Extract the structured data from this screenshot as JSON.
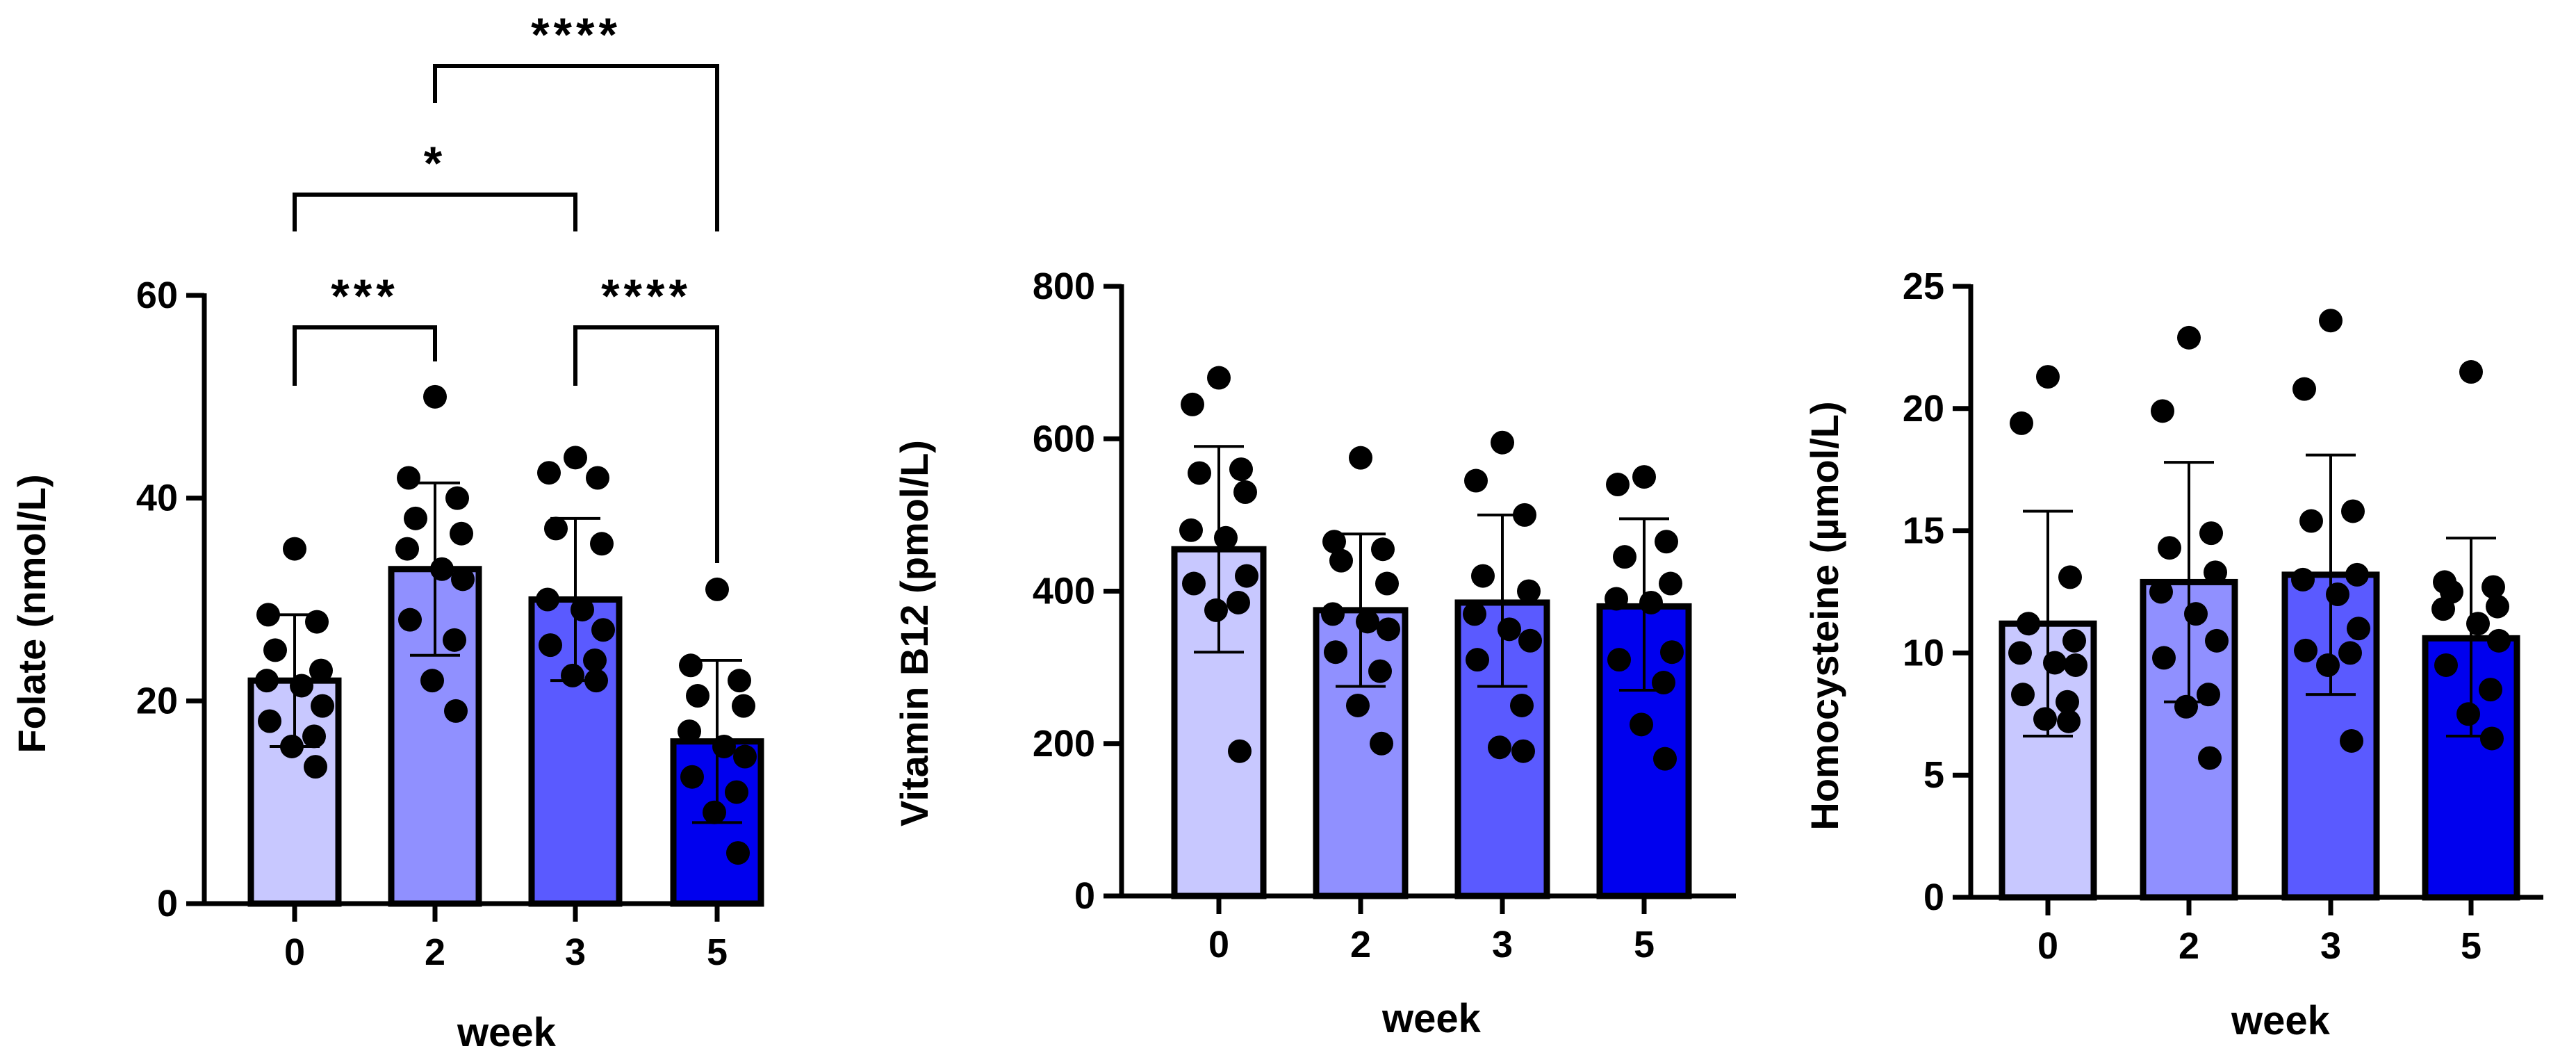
{
  "figure": {
    "background": "#ffffff",
    "bar_colors": [
      "#c8c8ff",
      "#9090ff",
      "#5a5aff",
      "#0000ee"
    ],
    "dot_color": "#000000",
    "panels": [
      "folate",
      "vitamin_b12",
      "homocysteine"
    ]
  },
  "chart_data": [
    {
      "id": "folate",
      "type": "bar",
      "title": "",
      "xlabel": "week",
      "ylabel": "Folate (nmol/L)",
      "categories": [
        "0",
        "2",
        "3",
        "5"
      ],
      "means": [
        22,
        33,
        30,
        16
      ],
      "sd_upper": [
        28.5,
        41.5,
        38,
        24
      ],
      "sd_lower": [
        15.5,
        24.5,
        22,
        8
      ],
      "points": [
        [
          35,
          28.5,
          27.8,
          25,
          23,
          22,
          21.5,
          19.5,
          18,
          16.5,
          15.5,
          13.5
        ],
        [
          50,
          42,
          40,
          38,
          36.5,
          35,
          33,
          32,
          28,
          26,
          22,
          19
        ],
        [
          44,
          42.5,
          42,
          37,
          35.5,
          30,
          29,
          27,
          25.5,
          24,
          22.5,
          22
        ],
        [
          31,
          23.5,
          22,
          20.5,
          19.5,
          17,
          15.5,
          14.5,
          12.5,
          11,
          9,
          5
        ]
      ],
      "ylim": [
        0,
        60
      ],
      "yticks": [
        0,
        20,
        40,
        60
      ],
      "significance": [
        {
          "from": "0",
          "to": "2",
          "label": "***"
        },
        {
          "from": "0",
          "to": "3",
          "label": "*"
        },
        {
          "from": "2",
          "to": "5",
          "label": "****"
        },
        {
          "from": "3",
          "to": "5",
          "label": "****"
        }
      ]
    },
    {
      "id": "vitamin_b12",
      "type": "bar",
      "title": "",
      "xlabel": "week",
      "ylabel": "Vitamin B12 (pmol/L)",
      "categories": [
        "0",
        "2",
        "3",
        "5"
      ],
      "means": [
        455,
        375,
        385,
        380
      ],
      "sd_upper": [
        590,
        475,
        500,
        495
      ],
      "sd_lower": [
        320,
        275,
        275,
        270
      ],
      "points": [
        [
          680,
          645,
          560,
          555,
          530,
          480,
          470,
          420,
          410,
          385,
          375,
          190
        ],
        [
          575,
          465,
          455,
          440,
          410,
          370,
          360,
          350,
          320,
          295,
          250,
          200
        ],
        [
          595,
          545,
          500,
          420,
          400,
          370,
          350,
          335,
          310,
          250,
          195,
          190
        ],
        [
          550,
          540,
          465,
          445,
          410,
          390,
          385,
          320,
          310,
          280,
          225,
          180
        ]
      ],
      "ylim": [
        0,
        800
      ],
      "yticks": [
        0,
        200,
        400,
        600,
        800
      ],
      "significance": []
    },
    {
      "id": "homocysteine",
      "type": "bar",
      "title": "",
      "xlabel": "week",
      "ylabel": "Homocysteine (µmol/L)",
      "categories": [
        "0",
        "2",
        "3",
        "5"
      ],
      "means": [
        11.2,
        12.9,
        13.2,
        10.6
      ],
      "sd_upper": [
        15.8,
        17.8,
        18.1,
        14.7
      ],
      "sd_lower": [
        6.6,
        8.0,
        8.3,
        6.6
      ],
      "points": [
        [
          21.3,
          19.4,
          13.1,
          11.2,
          10.5,
          10.0,
          9.6,
          9.5,
          8.3,
          8.0,
          7.3,
          7.2
        ],
        [
          22.9,
          19.9,
          14.9,
          14.3,
          13.3,
          12.5,
          11.6,
          10.5,
          9.8,
          8.3,
          7.8,
          5.7
        ],
        [
          23.6,
          20.8,
          15.8,
          15.4,
          13.2,
          13.0,
          12.4,
          11.0,
          10.1,
          10.0,
          9.5,
          6.4
        ],
        [
          21.5,
          12.9,
          12.7,
          12.5,
          11.9,
          11.8,
          11.2,
          10.5,
          9.5,
          8.5,
          7.5,
          6.5
        ]
      ],
      "ylim": [
        0,
        25
      ],
      "yticks": [
        0,
        5,
        10,
        15,
        20,
        25
      ],
      "significance": []
    }
  ]
}
